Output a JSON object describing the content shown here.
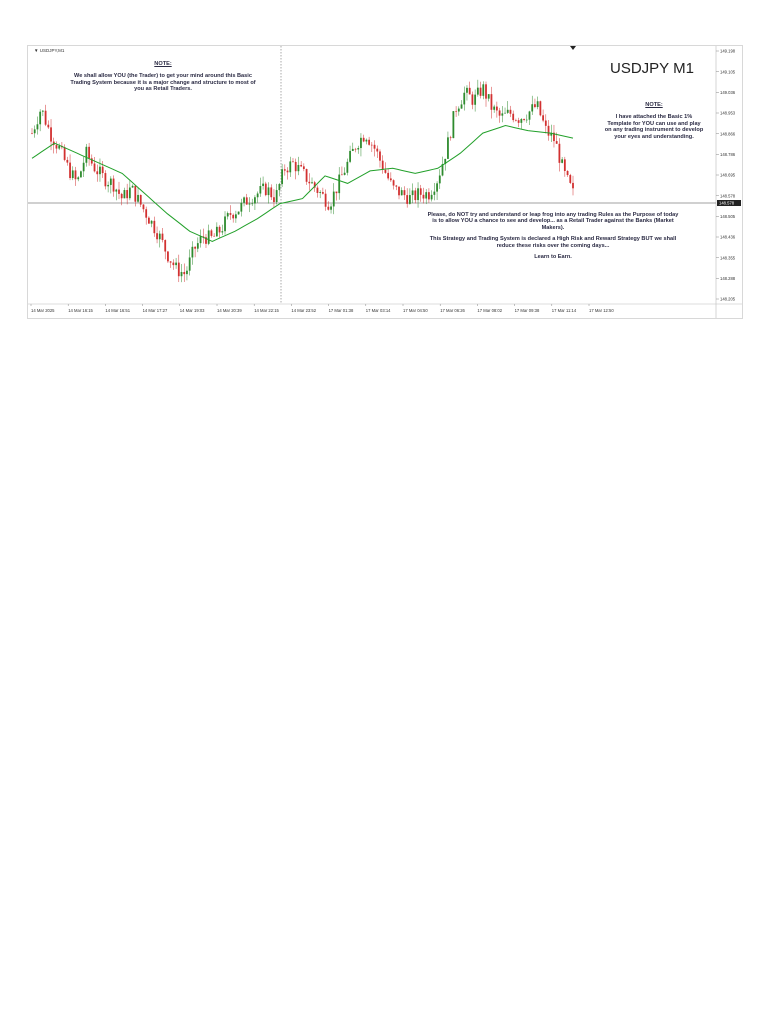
{
  "chart_data": {
    "type": "candlestick",
    "symbol_label": "▼ USDJPY,M1",
    "title": "USDJPY M1",
    "price_ticks": [
      "149.198",
      "149.105",
      "149.036",
      "148.953",
      "148.866",
      "148.786",
      "148.695",
      "148.578",
      "148.505",
      "148.436",
      "148.355",
      "148.288",
      "148.205"
    ],
    "current_price": "148.578",
    "time_ticks": [
      "14 Mar 2025",
      "14 Mar 16:15",
      "14 Mar 16:51",
      "14 Mar 17:27",
      "14 Mar 19:03",
      "14 Mar 20:39",
      "14 Mar 22:15",
      "14 Mar 23:52",
      "17 Mar 01:38",
      "17 Mar 03:14",
      "17 Mar 04:50",
      "17 Mar 06:26",
      "17 Mar 08:02",
      "17 Mar 09:38",
      "17 Mar 11:14",
      "17 Mar 12:50"
    ],
    "close_path": [
      148.86,
      148.96,
      148.86,
      148.8,
      148.72,
      148.66,
      148.78,
      148.72,
      148.68,
      148.66,
      148.6,
      148.64,
      148.58,
      148.52,
      148.46,
      148.38,
      148.32,
      148.3,
      148.4,
      148.45,
      148.44,
      148.48,
      148.54,
      148.56,
      148.6,
      148.62,
      148.64,
      148.6,
      148.72,
      148.74,
      148.7,
      148.66,
      148.62,
      148.58,
      148.66,
      148.74,
      148.82,
      148.86,
      148.8,
      148.72,
      148.64,
      148.62,
      148.6,
      148.62,
      148.62,
      148.68,
      148.8,
      148.96,
      149.02,
      148.99,
      149.04,
      148.96,
      148.92,
      148.94,
      148.92,
      148.94,
      148.97,
      148.87,
      148.83,
      148.7,
      148.62
    ],
    "ma_path": [
      148.76,
      148.82,
      148.78,
      148.74,
      148.7,
      148.62,
      148.54,
      148.47,
      148.43,
      148.47,
      148.52,
      148.58,
      148.6,
      148.69,
      148.66,
      148.71,
      148.72,
      148.7,
      148.72,
      148.78,
      148.86,
      148.89,
      148.87,
      148.86,
      148.84
    ]
  },
  "notes": {
    "left_heading": "NOTE:",
    "left_body": "We shall allow YOU (the Trader) to get your mind around this Basic Trading System because it is a major change and structure to most of you as Retail Traders.",
    "right_heading": "NOTE:",
    "right_body": "I have attached the Basic 1% Template for YOU can use and play on any trading instrument to develop your eyes and understanding.",
    "bottom_p1": "Please, do NOT try and understand or leap frog into any trading Rules as the Purpose of today is to allow YOU a chance to see and develop... as a Retail Trader against the Banks (Market Makers).",
    "bottom_p2": "This Strategy and Trading System is declared a High Risk and Reward Strategy BUT we shall reduce these risks over the coming days...",
    "bottom_p3": "Learn to Earn."
  },
  "colors": {
    "bull": "#2e8b2e",
    "bear": "#d23030",
    "ma": "#22a02a",
    "price_line": "#444444",
    "background": "#ffffff"
  }
}
